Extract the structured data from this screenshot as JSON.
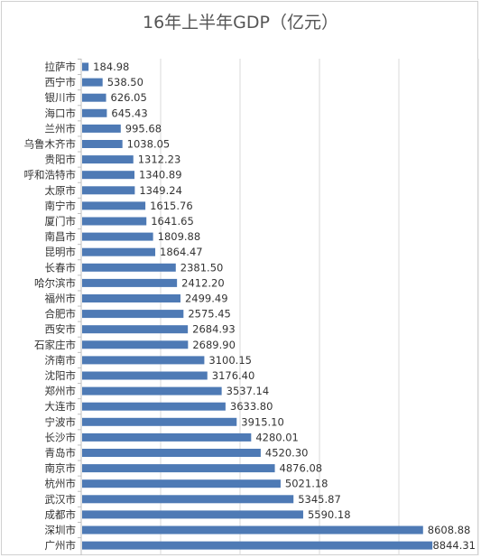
{
  "chart_data": {
    "type": "bar",
    "orientation": "horizontal",
    "title": "16年上半年GDP（亿元）",
    "xlabel": "",
    "ylabel": "",
    "xlim": [
      0,
      10000
    ],
    "grid": true,
    "legend": "none",
    "bar_color": "#4e7ab5",
    "categories": [
      "拉萨市",
      "西宁市",
      "银川市",
      "海口市",
      "兰州市",
      "乌鲁木齐市",
      "贵阳市",
      "呼和浩特市",
      "太原市",
      "南宁市",
      "厦门市",
      "南昌市",
      "昆明市",
      "长春市",
      "哈尔滨市",
      "福州市",
      "合肥市",
      "西安市",
      "石家庄市",
      "济南市",
      "沈阳市",
      "郑州市",
      "大连市",
      "宁波市",
      "长沙市",
      "青岛市",
      "南京市",
      "杭州市",
      "武汉市",
      "成都市",
      "深圳市",
      "广州市"
    ],
    "values": [
      184.98,
      538.5,
      626.05,
      645.43,
      995.68,
      1038.05,
      1312.23,
      1340.89,
      1349.24,
      1615.76,
      1641.65,
      1809.88,
      1864.47,
      2381.5,
      2412.2,
      2499.49,
      2575.45,
      2684.93,
      2689.9,
      3100.15,
      3176.4,
      3537.14,
      3633.8,
      3915.1,
      4280.01,
      4520.3,
      4876.08,
      5021.18,
      5345.87,
      5590.18,
      8608.88,
      8844.31
    ],
    "value_labels": [
      "184.98",
      "538.50",
      "626.05",
      "645.43",
      "995.68",
      "1038.05",
      "1312.23",
      "1340.89",
      "1349.24",
      "1615.76",
      "1641.65",
      "1809.88",
      "1864.47",
      "2381.50",
      "2412.20",
      "2499.49",
      "2575.45",
      "2684.93",
      "2689.90",
      "3100.15",
      "3176.40",
      "3537.14",
      "3633.80",
      "3915.10",
      "4280.01",
      "4520.30",
      "4876.08",
      "5021.18",
      "5345.87",
      "5590.18",
      "8608.88",
      "8844.31"
    ]
  }
}
